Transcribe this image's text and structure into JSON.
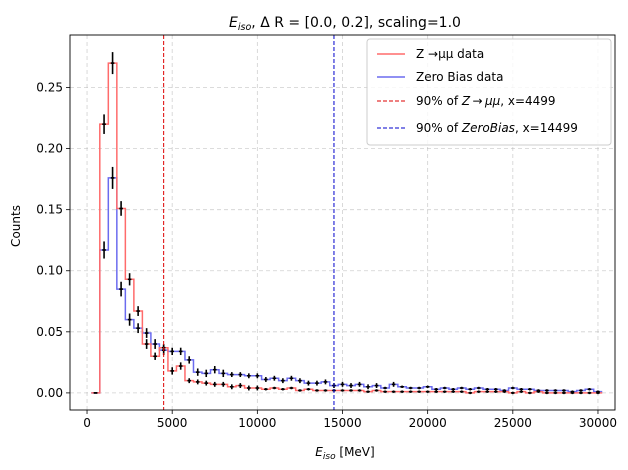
{
  "chart_data": {
    "type": "line",
    "title": {
      "symbol": "E",
      "subscript": "iso",
      "rest": ", Δ R = [0.0, 0.2], scaling=1.0"
    },
    "xlabel": {
      "symbol": "E",
      "subscript": "iso",
      "rest": " [MeV]"
    },
    "ylabel": "Counts",
    "xlim": [
      -1000,
      31000
    ],
    "ylim": [
      -0.014,
      0.293
    ],
    "xticks": [
      0,
      5000,
      10000,
      15000,
      20000,
      25000,
      30000
    ],
    "xtick_labels": [
      "0",
      "5000",
      "10000",
      "15000",
      "20000",
      "25000",
      "30000"
    ],
    "yticks": [
      0.0,
      0.05,
      0.1,
      0.15,
      0.2,
      0.25
    ],
    "ytick_labels": [
      "0.00",
      "0.05",
      "0.10",
      "0.15",
      "0.20",
      "0.25"
    ],
    "grid": true,
    "legend_position": "top-right",
    "bin_edges_start": 250,
    "bin_width": 500,
    "series": [
      {
        "name": "Z →μμ data",
        "color": "#ff6b6b",
        "values": [
          0.0,
          0.22,
          0.27,
          0.151,
          0.093,
          0.067,
          0.04,
          0.03,
          0.037,
          0.018,
          0.022,
          0.01,
          0.009,
          0.008,
          0.007,
          0.007,
          0.005,
          0.006,
          0.004,
          0.004,
          0.003,
          0.004,
          0.003,
          0.004,
          0.002,
          0.003,
          0.002,
          0.002,
          0.002,
          0.002,
          0.002,
          0.002,
          0.001,
          0.002,
          0.001,
          0.001,
          0.001,
          0.001,
          0.001,
          0.001,
          0.001,
          0.001,
          0.001,
          0.001,
          0.0,
          0.001,
          0.001,
          0.001,
          0.001,
          0.0,
          0.001,
          0.0,
          0.001,
          0.0,
          0.0,
          0.0,
          0.0,
          0.0,
          0.0,
          0.0
        ],
        "errors": [
          0.0,
          0.008,
          0.009,
          0.006,
          0.005,
          0.004,
          0.004,
          0.003,
          0.003,
          0.003,
          0.003,
          0.002,
          0.002,
          0.002,
          0.002,
          0.002,
          0.002,
          0.002,
          0.002,
          0.002,
          0.001,
          0.001,
          0.001,
          0.001,
          0.001,
          0.001,
          0.001,
          0.001,
          0.001,
          0.001,
          0.001,
          0.001,
          0.001,
          0.001,
          0.001,
          0.001,
          0.001,
          0.001,
          0.001,
          0.001,
          0.001,
          0.001,
          0.001,
          0.001,
          0.001,
          0.001,
          0.001,
          0.001,
          0.001,
          0.001,
          0.001,
          0.001,
          0.001,
          0.001,
          0.001,
          0.001,
          0.001,
          0.001,
          0.001,
          0.001
        ]
      },
      {
        "name": "Zero Bias data",
        "color": "#6b6bef",
        "values": [
          0.0,
          0.117,
          0.176,
          0.085,
          0.06,
          0.053,
          0.049,
          0.04,
          0.035,
          0.034,
          0.034,
          0.027,
          0.017,
          0.016,
          0.019,
          0.016,
          0.015,
          0.015,
          0.014,
          0.014,
          0.011,
          0.012,
          0.01,
          0.012,
          0.01,
          0.008,
          0.008,
          0.009,
          0.006,
          0.007,
          0.006,
          0.007,
          0.005,
          0.006,
          0.004,
          0.007,
          0.005,
          0.004,
          0.004,
          0.005,
          0.003,
          0.004,
          0.003,
          0.004,
          0.003,
          0.004,
          0.003,
          0.003,
          0.002,
          0.004,
          0.003,
          0.003,
          0.002,
          0.002,
          0.002,
          0.002,
          0.001,
          0.002,
          0.003,
          0.001
        ],
        "errors": [
          0.0,
          0.007,
          0.009,
          0.006,
          0.005,
          0.004,
          0.004,
          0.004,
          0.004,
          0.003,
          0.003,
          0.003,
          0.003,
          0.003,
          0.003,
          0.003,
          0.002,
          0.002,
          0.002,
          0.002,
          0.002,
          0.002,
          0.002,
          0.002,
          0.002,
          0.002,
          0.002,
          0.002,
          0.002,
          0.002,
          0.002,
          0.002,
          0.002,
          0.002,
          0.001,
          0.002,
          0.001,
          0.001,
          0.001,
          0.001,
          0.001,
          0.001,
          0.001,
          0.001,
          0.001,
          0.001,
          0.001,
          0.001,
          0.001,
          0.001,
          0.001,
          0.001,
          0.001,
          0.001,
          0.001,
          0.001,
          0.001,
          0.001,
          0.001,
          0.001
        ]
      }
    ],
    "vlines": [
      {
        "x": 4499,
        "color": "#dd0000",
        "label_prefix": "90% of ",
        "label_italic": "Z → μμ",
        "label_suffix": ", x=4499"
      },
      {
        "x": 14499,
        "color": "#0000cc",
        "label_prefix": "90% of ",
        "label_italic": "ZeroBias",
        "label_suffix": ", x=14499"
      }
    ]
  }
}
